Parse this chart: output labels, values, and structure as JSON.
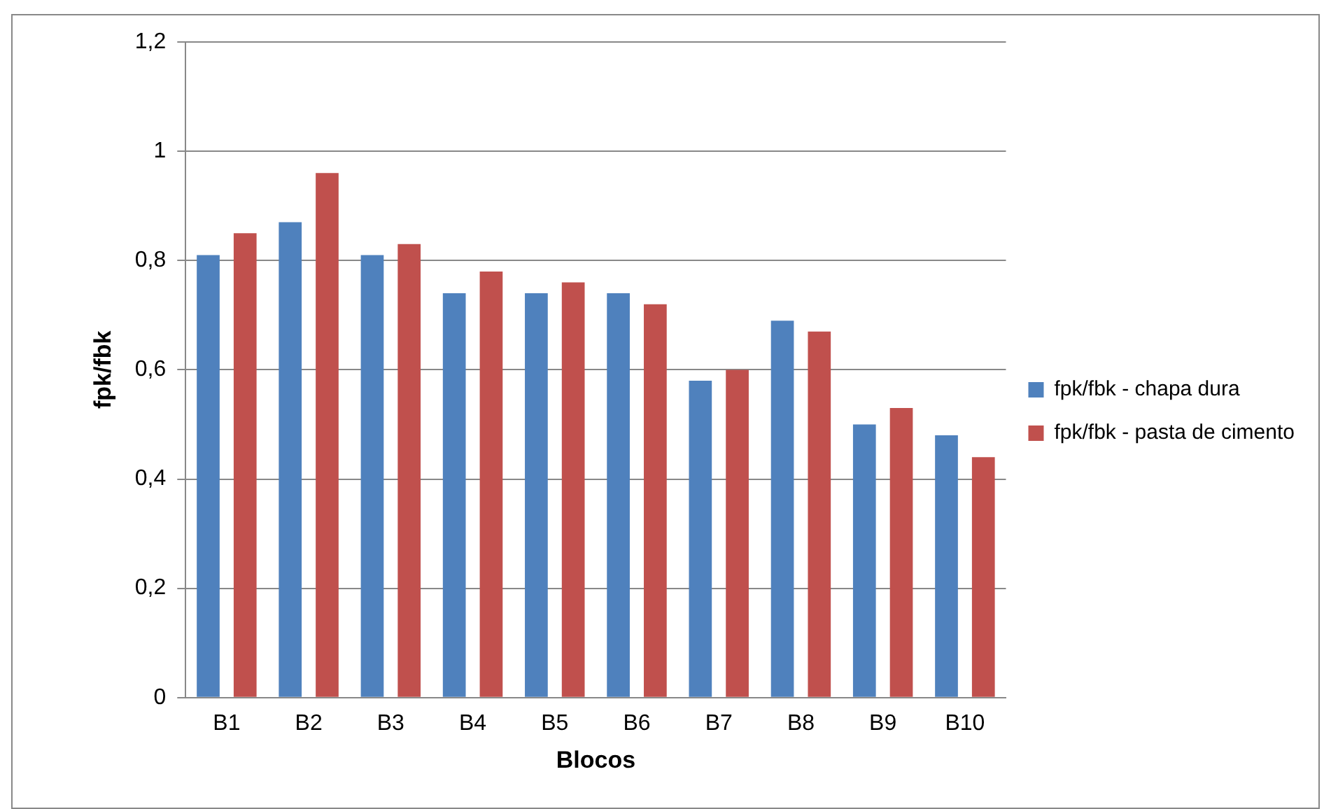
{
  "chart_data": {
    "type": "bar",
    "xlabel": "Blocos",
    "ylabel": "fpk/fbk",
    "categories": [
      "B1",
      "B2",
      "B3",
      "B4",
      "B5",
      "B6",
      "B7",
      "B8",
      "B9",
      "B10"
    ],
    "series": [
      {
        "name": "fpk/fbk - chapa dura",
        "color": "#4f81bd",
        "values": [
          0.81,
          0.87,
          0.81,
          0.74,
          0.74,
          0.74,
          0.58,
          0.69,
          0.5,
          0.48
        ]
      },
      {
        "name": "fpk/fbk - pasta de cimento",
        "color": "#c0504d",
        "values": [
          0.85,
          0.96,
          0.83,
          0.78,
          0.76,
          0.72,
          0.6,
          0.67,
          0.53,
          0.44
        ]
      }
    ],
    "ylim": [
      0,
      1.2
    ],
    "yticks": [
      0,
      {
        "value": 0.2,
        "label": "0,2"
      },
      {
        "value": 0.4,
        "label": "0,4"
      },
      {
        "value": 0.6,
        "label": "0,6"
      },
      {
        "value": 0.8,
        "label": "0,8"
      },
      1,
      {
        "value": 1.2,
        "label": "1,2"
      }
    ],
    "grid": "y",
    "legend": "right"
  }
}
